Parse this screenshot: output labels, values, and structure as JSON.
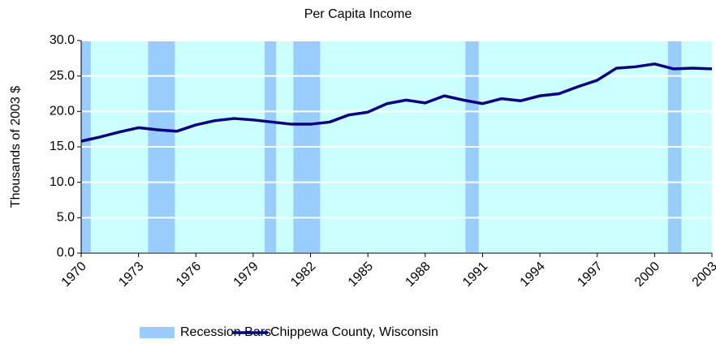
{
  "chart_data": {
    "type": "line",
    "title": "Per Capita Income",
    "y_label": "Thousands of 2003 $",
    "x": [
      1970,
      1971,
      1972,
      1973,
      1974,
      1975,
      1976,
      1977,
      1978,
      1979,
      1980,
      1981,
      1982,
      1983,
      1984,
      1985,
      1986,
      1987,
      1988,
      1989,
      1990,
      1991,
      1992,
      1993,
      1994,
      1995,
      1996,
      1997,
      1998,
      1999,
      2000,
      2001,
      2002,
      2003
    ],
    "series": [
      {
        "name": "Chippewa County, Wisconsin",
        "color": "#000080",
        "values": [
          15.8,
          16.4,
          17.1,
          17.7,
          17.4,
          17.2,
          18.1,
          18.7,
          19.0,
          18.8,
          18.5,
          18.2,
          18.2,
          18.5,
          19.5,
          19.9,
          21.1,
          21.6,
          21.2,
          22.2,
          21.6,
          21.1,
          21.8,
          21.5,
          22.2,
          22.5,
          23.5,
          24.4,
          26.1,
          26.3,
          26.7,
          26.0,
          26.1,
          26.0
        ]
      }
    ],
    "recessions": {
      "name": "Recession Bars",
      "color": "#99ccff",
      "ranges": [
        [
          1970,
          1970.5
        ],
        [
          1973.5,
          1974.9
        ],
        [
          1979.6,
          1980.2
        ],
        [
          1981.1,
          1982.5
        ],
        [
          1990.1,
          1990.8
        ],
        [
          2000.7,
          2001.4
        ]
      ]
    },
    "xlim": [
      1970,
      2003
    ],
    "xticks": [
      1970,
      1973,
      1976,
      1979,
      1982,
      1985,
      1988,
      1991,
      1994,
      1997,
      2000,
      2003
    ],
    "ylim": [
      0,
      30
    ],
    "yticks": [
      {
        "value": 0,
        "label": "0.0"
      },
      {
        "value": 5,
        "label": "5.0"
      },
      {
        "value": 10,
        "label": "10.0"
      },
      {
        "value": 15,
        "label": "15.0"
      },
      {
        "value": 20,
        "label": "20.0"
      },
      {
        "value": 25,
        "label": "25.0"
      },
      {
        "value": 30,
        "label": "30.0"
      }
    ],
    "grid": true,
    "background": "#ccffff",
    "legend": "bottom"
  }
}
